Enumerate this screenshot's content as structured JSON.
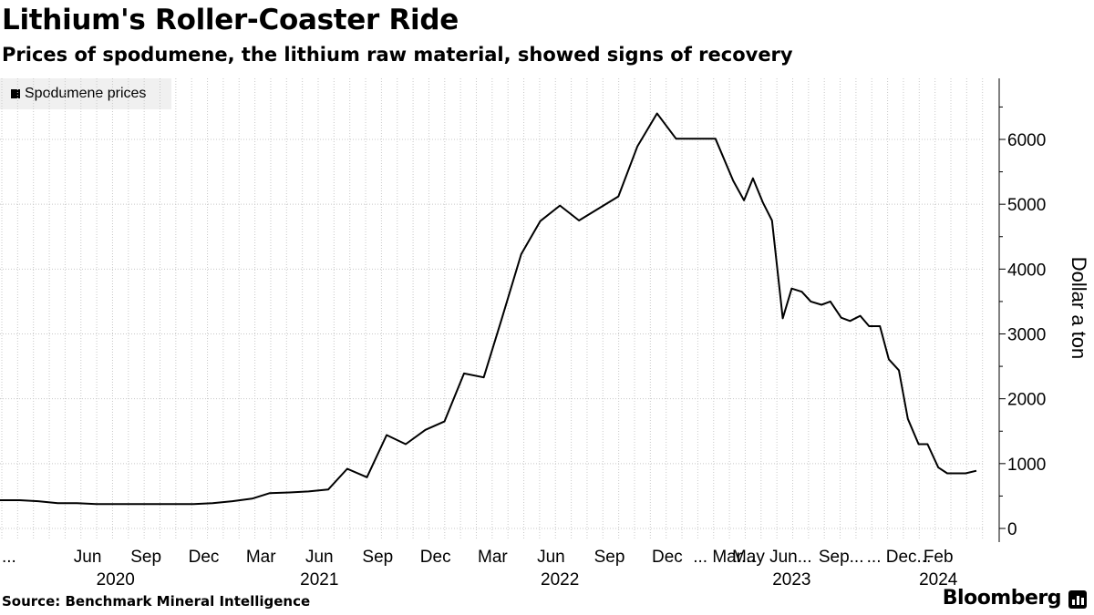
{
  "header": {
    "title": "Lithium's Roller-Coaster Ride",
    "subtitle": "Prices of spodumene, the lithium raw material, showed signs of recovery"
  },
  "footer": {
    "source": "Source: Benchmark Mineral Intelligence",
    "brand": "Bloomberg"
  },
  "colors": {
    "line": "#000000",
    "grid": "#c8c8c8",
    "legend_bg": "#f0f0f0"
  },
  "chart_data": {
    "type": "line",
    "title": "Lithium's Roller-Coaster Ride",
    "subtitle": "Prices of spodumene, the lithium raw material, showed signs of recovery",
    "ylabel": "Dollar a ton",
    "ylim": [
      0,
      7000
    ],
    "yticks": [
      0,
      1000,
      2000,
      3000,
      4000,
      5000,
      6000
    ],
    "ytick_labels": [
      "0",
      "1000",
      "2000",
      "3000",
      "4000",
      "5000",
      "6000"
    ],
    "grid": true,
    "legend_placement": "top-left",
    "x_tick_labels": [
      {
        "label": "...",
        "date": "2020-03-01"
      },
      {
        "label": "Jun",
        "date": "2020-06-01"
      },
      {
        "label": "Sep",
        "date": "2020-09-01"
      },
      {
        "label": "Dec",
        "date": "2020-12-01"
      },
      {
        "label": "Mar",
        "date": "2021-03-01"
      },
      {
        "label": "Jun",
        "date": "2021-06-01"
      },
      {
        "label": "Sep",
        "date": "2021-09-01"
      },
      {
        "label": "Dec",
        "date": "2021-12-01"
      },
      {
        "label": "Mar",
        "date": "2022-03-01"
      },
      {
        "label": "Jun",
        "date": "2022-06-01"
      },
      {
        "label": "Sep",
        "date": "2022-09-01"
      },
      {
        "label": "Dec",
        "date": "2022-12-01"
      },
      {
        "label": "... Mar...",
        "date": "2023-03-01"
      },
      {
        "label": "May Jun...",
        "date": "2023-05-15"
      },
      {
        "label": "Sep...",
        "date": "2023-09-01"
      },
      {
        "label": "... Dec...",
        "date": "2023-12-01"
      },
      {
        "label": "Feb",
        "date": "2024-02-01"
      }
    ],
    "year_labels": [
      {
        "label": "2020",
        "date": "2020-07-15"
      },
      {
        "label": "2021",
        "date": "2021-06-01"
      },
      {
        "label": "2022",
        "date": "2022-06-15"
      },
      {
        "label": "2023",
        "date": "2023-06-15"
      },
      {
        "label": "2024",
        "date": "2024-02-01"
      }
    ],
    "series": [
      {
        "name": "Spodumene prices",
        "color": "#000000",
        "points": [
          [
            "2020-01-15",
            435
          ],
          [
            "2020-02-15",
            435
          ],
          [
            "2020-03-15",
            420
          ],
          [
            "2020-04-15",
            390
          ],
          [
            "2020-05-15",
            390
          ],
          [
            "2020-06-15",
            375
          ],
          [
            "2020-07-15",
            375
          ],
          [
            "2020-08-15",
            375
          ],
          [
            "2020-09-15",
            375
          ],
          [
            "2020-10-15",
            375
          ],
          [
            "2020-11-15",
            375
          ],
          [
            "2020-12-15",
            390
          ],
          [
            "2021-01-15",
            420
          ],
          [
            "2021-02-15",
            460
          ],
          [
            "2021-03-15",
            545
          ],
          [
            "2021-04-15",
            555
          ],
          [
            "2021-05-15",
            570
          ],
          [
            "2021-06-15",
            600
          ],
          [
            "2021-07-15",
            920
          ],
          [
            "2021-08-15",
            790
          ],
          [
            "2021-09-15",
            1440
          ],
          [
            "2021-10-15",
            1300
          ],
          [
            "2021-11-15",
            1520
          ],
          [
            "2021-12-15",
            1650
          ],
          [
            "2022-01-15",
            2390
          ],
          [
            "2022-02-15",
            2330
          ],
          [
            "2022-03-15",
            3220
          ],
          [
            "2022-04-15",
            4230
          ],
          [
            "2022-05-15",
            4740
          ],
          [
            "2022-06-15",
            4980
          ],
          [
            "2022-07-15",
            4750
          ],
          [
            "2022-09-15",
            5120
          ],
          [
            "2022-10-15",
            5890
          ],
          [
            "2022-11-15",
            6400
          ],
          [
            "2022-12-15",
            6010
          ],
          [
            "2023-02-15",
            6010
          ],
          [
            "2023-03-15",
            5360
          ],
          [
            "2023-04-01",
            5060
          ],
          [
            "2023-04-15",
            5400
          ],
          [
            "2023-05-01",
            5020
          ],
          [
            "2023-05-15",
            4750
          ],
          [
            "2023-06-01",
            3240
          ],
          [
            "2023-06-15",
            3700
          ],
          [
            "2023-07-01",
            3650
          ],
          [
            "2023-07-15",
            3500
          ],
          [
            "2023-08-01",
            3450
          ],
          [
            "2023-08-15",
            3500
          ],
          [
            "2023-09-01",
            3250
          ],
          [
            "2023-09-15",
            3200
          ],
          [
            "2023-10-01",
            3280
          ],
          [
            "2023-10-15",
            3120
          ],
          [
            "2023-11-01",
            3120
          ],
          [
            "2023-11-15",
            2610
          ],
          [
            "2023-12-01",
            2440
          ],
          [
            "2023-12-15",
            1690
          ],
          [
            "2024-01-01",
            1300
          ],
          [
            "2024-01-15",
            1300
          ],
          [
            "2024-02-01",
            940
          ],
          [
            "2024-02-15",
            850
          ],
          [
            "2024-03-01",
            850
          ],
          [
            "2024-03-15",
            850
          ],
          [
            "2024-04-01",
            890
          ]
        ]
      }
    ]
  }
}
